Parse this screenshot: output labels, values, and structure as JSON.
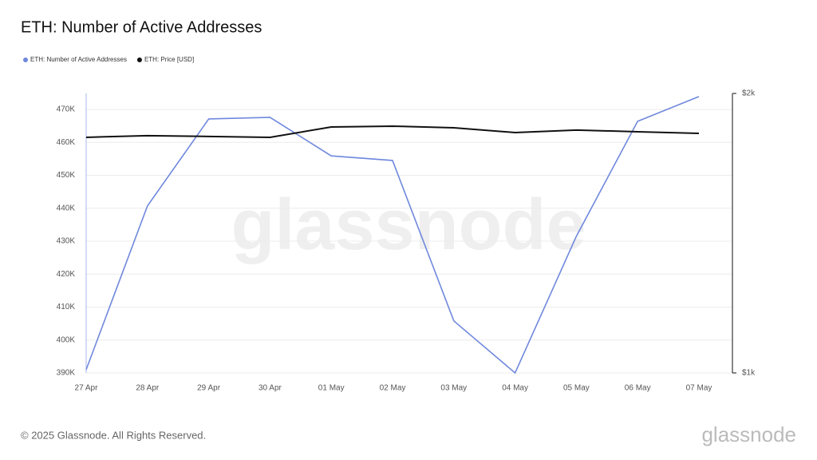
{
  "chart_data": {
    "type": "line",
    "title": "ETH: Number of Active Addresses",
    "categories": [
      "27 Apr",
      "28 Apr",
      "29 Apr",
      "30 Apr",
      "01 May",
      "02 May",
      "03 May",
      "04 May",
      "05 May",
      "06 May",
      "07 May"
    ],
    "series": [
      {
        "name": "ETH: Number of Active Addresses",
        "color": "#6f88dd",
        "values": [
          391000,
          440700,
          467100,
          467600,
          455900,
          454500,
          405800,
          390000,
          431500,
          466400,
          473900
        ]
      },
      {
        "name": "ETH: Price [USD]",
        "color": "#111111",
        "axis": "y2",
        "values": [
          1843,
          1849,
          1846,
          1843,
          1880,
          1883,
          1877,
          1860,
          1869,
          1863,
          1857
        ]
      }
    ],
    "ylim": [
      390000,
      474850
    ],
    "yticks": [
      {
        "value": 390000,
        "label": "390K"
      },
      {
        "value": 400000,
        "label": "400K"
      },
      {
        "value": 410000,
        "label": "410K"
      },
      {
        "value": 420000,
        "label": "420K"
      },
      {
        "value": 430000,
        "label": "430K"
      },
      {
        "value": 440000,
        "label": "440K"
      },
      {
        "value": 450000,
        "label": "450K"
      },
      {
        "value": 460000,
        "label": "460K"
      },
      {
        "value": 470000,
        "label": "470K"
      }
    ],
    "y2lim": [
      1000,
      2000
    ],
    "y2ticks": [
      {
        "value": 1000,
        "label": "$1k"
      },
      {
        "value": 2000,
        "label": "$2k"
      }
    ],
    "grid": true,
    "legend": "top-left",
    "watermark": "glassnode",
    "footer": "© 2025 Glassnode. All Rights Reserved.",
    "logo": "glassnode"
  }
}
